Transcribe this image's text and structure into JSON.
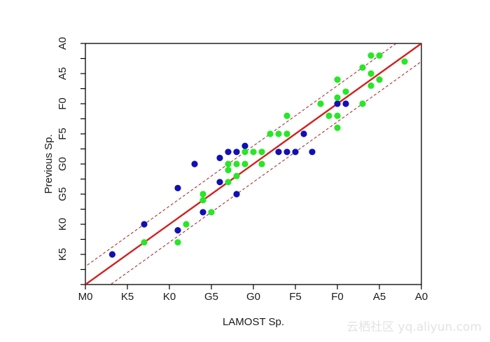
{
  "chart_data": {
    "type": "scatter",
    "xlabel": "LAMOST Sp.",
    "ylabel": "Previous Sp.",
    "x_ticks": [
      "M0",
      "K5",
      "K0",
      "G5",
      "G0",
      "F5",
      "F0",
      "A5",
      "A0"
    ],
    "y_ticks": [
      "K5",
      "K0",
      "G5",
      "G0",
      "F5",
      "F0",
      "A5",
      "A0"
    ],
    "xlim": [
      0,
      40
    ],
    "ylim": [
      0,
      40
    ],
    "tick_step": 5,
    "scale_note": "axis index: A0 = 40, A5 = 35, F0 = 30, F5 = 25, G0 = 20, G5 = 15, K0 = 10, K5 = 5, M0 = 0",
    "grid": false,
    "legend": "none",
    "lines": [
      {
        "kind": "identity",
        "offset": 0,
        "style": "solid",
        "color": "#d42020"
      },
      {
        "kind": "identity",
        "offset": 3,
        "style": "dashed",
        "color": "#a83232"
      },
      {
        "kind": "identity",
        "offset": -3,
        "style": "dashed",
        "color": "#a83232"
      }
    ],
    "series": [
      {
        "color": "#1010b4",
        "points": [
          [
            3.2,
            5.0
          ],
          [
            7.0,
            10.0
          ],
          [
            11.0,
            9.0
          ],
          [
            11.0,
            16.0
          ],
          [
            13.0,
            20.0
          ],
          [
            14.0,
            12.0
          ],
          [
            16.0,
            17.0
          ],
          [
            16.0,
            21.0
          ],
          [
            17.0,
            22.0
          ],
          [
            18.0,
            22.0
          ],
          [
            18.0,
            15.0
          ],
          [
            19.0,
            23.0
          ],
          [
            23.0,
            22.0
          ],
          [
            24.0,
            22.0
          ],
          [
            25.0,
            22.0
          ],
          [
            26.0,
            25.0
          ],
          [
            27.0,
            22.0
          ],
          [
            30.0,
            30.0
          ],
          [
            31.0,
            30.0
          ]
        ]
      },
      {
        "color": "#28e628",
        "points": [
          [
            7.0,
            7.0
          ],
          [
            11.0,
            7.0
          ],
          [
            12.0,
            10.0
          ],
          [
            14.0,
            15.0
          ],
          [
            14.0,
            14.0
          ],
          [
            15.0,
            12.0
          ],
          [
            17.0,
            20.0
          ],
          [
            17.0,
            19.0
          ],
          [
            17.0,
            17.0
          ],
          [
            18.0,
            20.0
          ],
          [
            18.0,
            18.0
          ],
          [
            19.0,
            20.0
          ],
          [
            19.0,
            22.0
          ],
          [
            20.0,
            22.0
          ],
          [
            21.0,
            22.0
          ],
          [
            21.0,
            20.0
          ],
          [
            22.0,
            25.0
          ],
          [
            23.0,
            25.0
          ],
          [
            24.0,
            25.0
          ],
          [
            24.0,
            28.0
          ],
          [
            28.0,
            30.0
          ],
          [
            29.0,
            28.0
          ],
          [
            30.0,
            26.0
          ],
          [
            30.0,
            28.0
          ],
          [
            30.0,
            31.0
          ],
          [
            30.0,
            34.0
          ],
          [
            31.0,
            32.0
          ],
          [
            33.0,
            30.0
          ],
          [
            33.0,
            36.0
          ],
          [
            34.0,
            33.0
          ],
          [
            34.0,
            35.0
          ],
          [
            34.0,
            38.0
          ],
          [
            35.0,
            34.0
          ],
          [
            35.0,
            38.0
          ],
          [
            38.0,
            37.0
          ]
        ]
      }
    ]
  },
  "watermark": "云栖社区 yq.aliyun.com"
}
